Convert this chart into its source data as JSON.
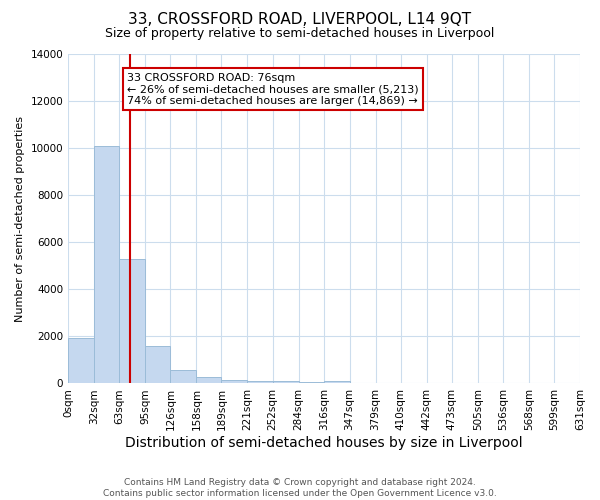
{
  "title": "33, CROSSFORD ROAD, LIVERPOOL, L14 9QT",
  "subtitle": "Size of property relative to semi-detached houses in Liverpool",
  "xlabel": "Distribution of semi-detached houses by size in Liverpool",
  "ylabel": "Number of semi-detached properties",
  "bin_edges": [
    0,
    32,
    63,
    95,
    126,
    158,
    189,
    221,
    252,
    284,
    316,
    347,
    379,
    410,
    442,
    473,
    505,
    536,
    568,
    599,
    631
  ],
  "bar_heights": [
    1950,
    10100,
    5300,
    1580,
    580,
    290,
    165,
    120,
    100,
    70,
    95,
    0,
    0,
    0,
    0,
    0,
    0,
    0,
    0,
    0
  ],
  "bar_color": "#c5d8ef",
  "bar_edge_color": "#9bbcd8",
  "property_size": 76,
  "red_line_color": "#cc0000",
  "annotation_text": "33 CROSSFORD ROAD: 76sqm\n← 26% of semi-detached houses are smaller (5,213)\n74% of semi-detached houses are larger (14,869) →",
  "annotation_box_edge_color": "#cc0000",
  "footnote": "Contains HM Land Registry data © Crown copyright and database right 2024.\nContains public sector information licensed under the Open Government Licence v3.0.",
  "ylim": [
    0,
    14000
  ],
  "yticks": [
    0,
    2000,
    4000,
    6000,
    8000,
    10000,
    12000,
    14000
  ],
  "background_color": "#ffffff",
  "grid_color": "#ccdded",
  "title_fontsize": 11,
  "subtitle_fontsize": 9,
  "xlabel_fontsize": 10,
  "ylabel_fontsize": 8,
  "tick_fontsize": 7.5,
  "annotation_fontsize": 8,
  "footnote_fontsize": 6.5
}
